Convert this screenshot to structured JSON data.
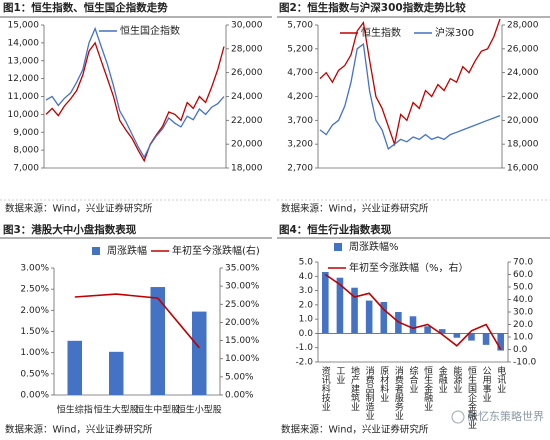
{
  "chart_data": [
    {
      "type": "line",
      "title": "图1：恒生指数、恒生国企指数走势",
      "source": "数据来源：Wind，兴业证券研究所",
      "ylim": [
        7000,
        15000
      ],
      "yticks": [
        {
          "value": 7000,
          "label": "7,000"
        },
        {
          "value": 8000,
          "label": "8,000"
        },
        {
          "value": 9000,
          "label": "9,000"
        },
        {
          "value": 10000,
          "label": "10,000"
        },
        {
          "value": 11000,
          "label": "11,000"
        },
        {
          "value": 12000,
          "label": "12,000"
        },
        {
          "value": 13000,
          "label": "13,000"
        },
        {
          "value": 14000,
          "label": "14,000"
        },
        {
          "value": 15000,
          "label": "15,000"
        }
      ],
      "y2lim": [
        18000,
        30000
      ],
      "y2ticks": [
        {
          "value": 18000,
          "label": "18,000"
        },
        {
          "value": 20000,
          "label": "20,000"
        },
        {
          "value": 22000,
          "label": "22,000"
        },
        {
          "value": 24000,
          "label": "24,000"
        },
        {
          "value": 26000,
          "label": "26,000"
        },
        {
          "value": 28000,
          "label": "28,000"
        },
        {
          "value": 30000,
          "label": "30,000"
        }
      ],
      "series": [
        {
          "color": "#c00000",
          "axis": "y2",
          "values": [
            22500,
            23000,
            22400,
            23200,
            23800,
            24500,
            25800,
            27800,
            28500,
            27000,
            25500,
            24000,
            22000,
            21200,
            20500,
            19500,
            18600,
            20000,
            20800,
            21500,
            22700,
            22500,
            22000,
            23500,
            23000,
            24000,
            23500,
            24800,
            26300,
            28200
          ]
        },
        {
          "name": "恒生国企指数",
          "color": "#4472c4",
          "axis": "y",
          "values": [
            10800,
            11000,
            10500,
            10900,
            11200,
            11800,
            12500,
            14000,
            14800,
            13800,
            12800,
            11600,
            10200,
            9600,
            8900,
            8200,
            7600,
            8300,
            8800,
            9200,
            9800,
            9500,
            9300,
            9900,
            9700,
            10300,
            10000,
            10400,
            10600,
            11000
          ]
        }
      ]
    },
    {
      "type": "line",
      "title": "图2：恒生指数与沪深300指数走势比较",
      "source": "数据来源：Wind，兴业证券研究所",
      "ylim": [
        2700,
        5700
      ],
      "yticks": [
        {
          "value": 2700,
          "label": "2,700"
        },
        {
          "value": 3200,
          "label": "3,200"
        },
        {
          "value": 3700,
          "label": "3,700"
        },
        {
          "value": 4200,
          "label": "4,200"
        },
        {
          "value": 4700,
          "label": "4,700"
        },
        {
          "value": 5200,
          "label": "5,200"
        },
        {
          "value": 5700,
          "label": "5,700"
        }
      ],
      "y2lim": [
        16000,
        28000
      ],
      "y2ticks": [
        {
          "value": 16000,
          "label": "16,000"
        },
        {
          "value": 18000,
          "label": "18,000"
        },
        {
          "value": 20000,
          "label": "20,000"
        },
        {
          "value": 22000,
          "label": "22,000"
        },
        {
          "value": 24000,
          "label": "24,000"
        },
        {
          "value": 26000,
          "label": "26,000"
        },
        {
          "value": 28000,
          "label": "28,000"
        }
      ],
      "series": [
        {
          "name": "恒生指数",
          "color": "#c00000",
          "axis": "y2",
          "values": [
            23500,
            24000,
            23200,
            24200,
            24600,
            25500,
            27500,
            28200,
            25000,
            22000,
            21000,
            19500,
            18000,
            20500,
            20000,
            21500,
            21000,
            22500,
            22000,
            23000,
            22500,
            23500,
            23200,
            24500,
            24000,
            25000,
            25800,
            26000,
            27000,
            28500
          ]
        },
        {
          "name": "沪深300",
          "color": "#4472c4",
          "axis": "y",
          "values": [
            3500,
            3400,
            3600,
            3700,
            4000,
            4500,
            5200,
            5300,
            4300,
            3700,
            3500,
            3100,
            3200,
            3300,
            3250,
            3350,
            3300,
            3400,
            3300,
            3350,
            3300,
            3400,
            3450,
            3500,
            3550,
            3600,
            3650,
            3700,
            3750,
            3800
          ]
        }
      ]
    },
    {
      "type": "combo",
      "title": "图3：港股大中小盘指数表现",
      "source": "数据来源：Wind，兴业证券研究所",
      "categories": [
        "恒生综指",
        "恒生大型股",
        "恒生中型股",
        "恒生小型股"
      ],
      "ylim": [
        0,
        3
      ],
      "yticks": [
        {
          "value": 0,
          "label": "0.00%"
        },
        {
          "value": 0.5,
          "label": "0.50%"
        },
        {
          "value": 1,
          "label": "1.00%"
        },
        {
          "value": 1.5,
          "label": "1.50%"
        },
        {
          "value": 2,
          "label": "2.00%"
        },
        {
          "value": 2.5,
          "label": "2.50%"
        },
        {
          "value": 3,
          "label": "3.00%"
        }
      ],
      "y2lim": [
        0,
        35
      ],
      "y2ticks": [
        {
          "value": 0,
          "label": "0.00%"
        },
        {
          "value": 5,
          "label": "5.00%"
        },
        {
          "value": 10,
          "label": "10.00%"
        },
        {
          "value": 15,
          "label": "15.00%"
        },
        {
          "value": 20,
          "label": "20.00%"
        },
        {
          "value": 25,
          "label": "25.00%"
        },
        {
          "value": 30,
          "label": "30.00%"
        },
        {
          "value": 35,
          "label": "35.00%"
        }
      ],
      "series": [
        {
          "name": "周涨跌幅",
          "type": "bar",
          "color": "#4472c4",
          "axis": "y",
          "values": [
            1.28,
            1.02,
            2.55,
            1.97
          ]
        },
        {
          "name": "年初至今涨跌幅(右)",
          "type": "line",
          "color": "#c00000",
          "axis": "y2",
          "values": [
            27.0,
            27.8,
            26.7,
            13.0
          ]
        }
      ]
    },
    {
      "type": "combo",
      "title": "图4：恒生行业指数表现",
      "source": "数据来源：Wind，兴业证券研究所",
      "categories": [
        "资讯科技业",
        "工业",
        "地产建筑业",
        "消费品制造业",
        "原材料业",
        "消费者服务业",
        "综合业",
        "恒生金融业",
        "金融业",
        "能源业",
        "恒生国企金融业",
        "公用事业",
        "电讯业"
      ],
      "ylim": [
        -2,
        5
      ],
      "yticks": [
        {
          "value": -2,
          "label": "-2.0"
        },
        {
          "value": -1,
          "label": "-1.0"
        },
        {
          "value": 0,
          "label": "0.0"
        },
        {
          "value": 1,
          "label": "1.0"
        },
        {
          "value": 2,
          "label": "2.0"
        },
        {
          "value": 3,
          "label": "3.0"
        },
        {
          "value": 4,
          "label": "4.0"
        },
        {
          "value": 5,
          "label": "5.0"
        }
      ],
      "y2lim": [
        -10,
        70
      ],
      "y2ticks": [
        {
          "value": -10,
          "label": "-10.0"
        },
        {
          "value": 0,
          "label": "0.0"
        },
        {
          "value": 10,
          "label": "10.0"
        },
        {
          "value": 20,
          "label": "20.0"
        },
        {
          "value": 30,
          "label": "30.0"
        },
        {
          "value": 40,
          "label": "40.0"
        },
        {
          "value": 50,
          "label": "50.0"
        },
        {
          "value": 60,
          "label": "60.0"
        },
        {
          "value": 70,
          "label": "70.0"
        }
      ],
      "series": [
        {
          "name": "周涨跌幅%",
          "type": "bar",
          "color": "#4472c4",
          "axis": "y",
          "values": [
            4.3,
            3.9,
            3.2,
            2.3,
            2.2,
            1.5,
            1.2,
            0.5,
            0.3,
            -0.3,
            -0.5,
            -0.8,
            -1.2
          ]
        },
        {
          "name": "年初至今涨跌幅（%，右）",
          "type": "line",
          "color": "#c00000",
          "axis": "y2",
          "values": [
            60,
            52,
            42,
            45,
            32,
            22,
            17,
            20,
            12,
            3,
            15,
            20,
            0
          ]
        }
      ]
    }
  ],
  "watermark": "张忆东策略世界"
}
